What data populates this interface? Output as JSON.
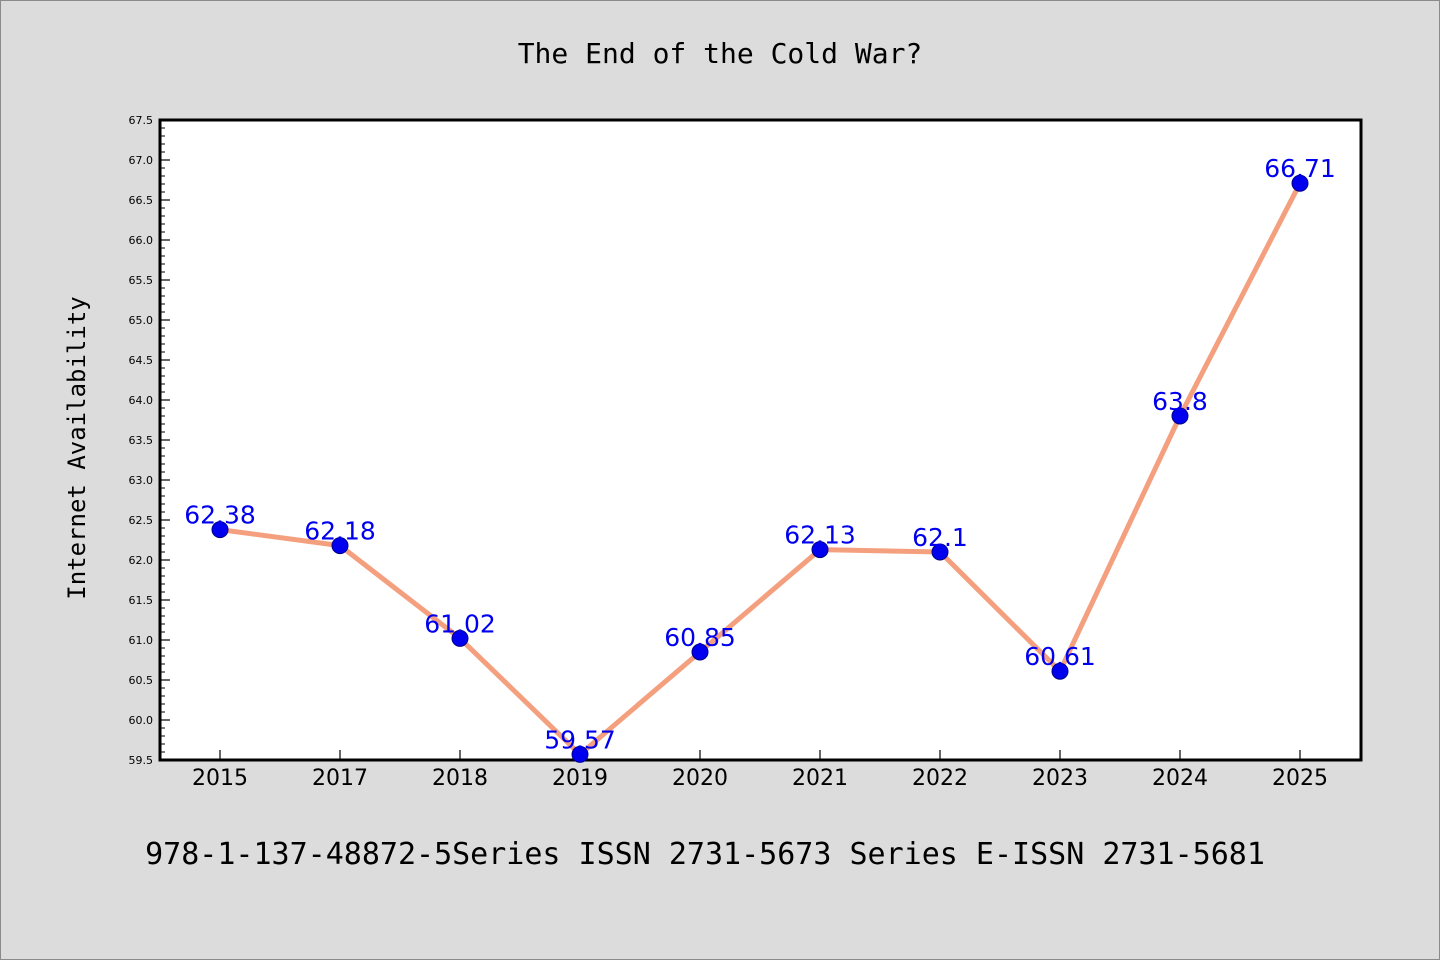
{
  "chart_data": {
    "type": "line",
    "title": "The End of the Cold War?",
    "xlabel": "",
    "ylabel": "Internet Availability",
    "categories": [
      "2015",
      "2017",
      "2018",
      "2019",
      "2020",
      "2021",
      "2022",
      "2023",
      "2024",
      "2025"
    ],
    "series": [
      {
        "values": [
          62.38,
          62.18,
          61.02,
          59.57,
          60.85,
          62.13,
          62.1,
          60.61,
          63.8,
          66.71
        ],
        "data_labels": [
          "62.38",
          "62.18",
          "61.02",
          "59.57",
          "60.85",
          "62.13",
          "62.1",
          "60.61",
          "63.8",
          "66.71"
        ]
      }
    ],
    "ylim": [
      59.5,
      67.5
    ],
    "yticks": [
      "59.5",
      "60.0",
      "60.5",
      "61.0",
      "61.5",
      "62.0",
      "62.5",
      "63.0",
      "63.5",
      "64.0",
      "64.5",
      "65.0",
      "65.5",
      "66.0",
      "66.5",
      "67.0",
      "67.5"
    ],
    "grid": false,
    "legend": "none",
    "colors": {
      "line": "#f4a07f",
      "marker": "#0000ee",
      "label": "#0000ee",
      "background": "#dcdcdc",
      "plot_background": "#ffffff"
    }
  },
  "footer": {
    "text": "978-1-137-48872-5Series ISSN 2731-5673 Series E-ISSN 2731-5681"
  }
}
